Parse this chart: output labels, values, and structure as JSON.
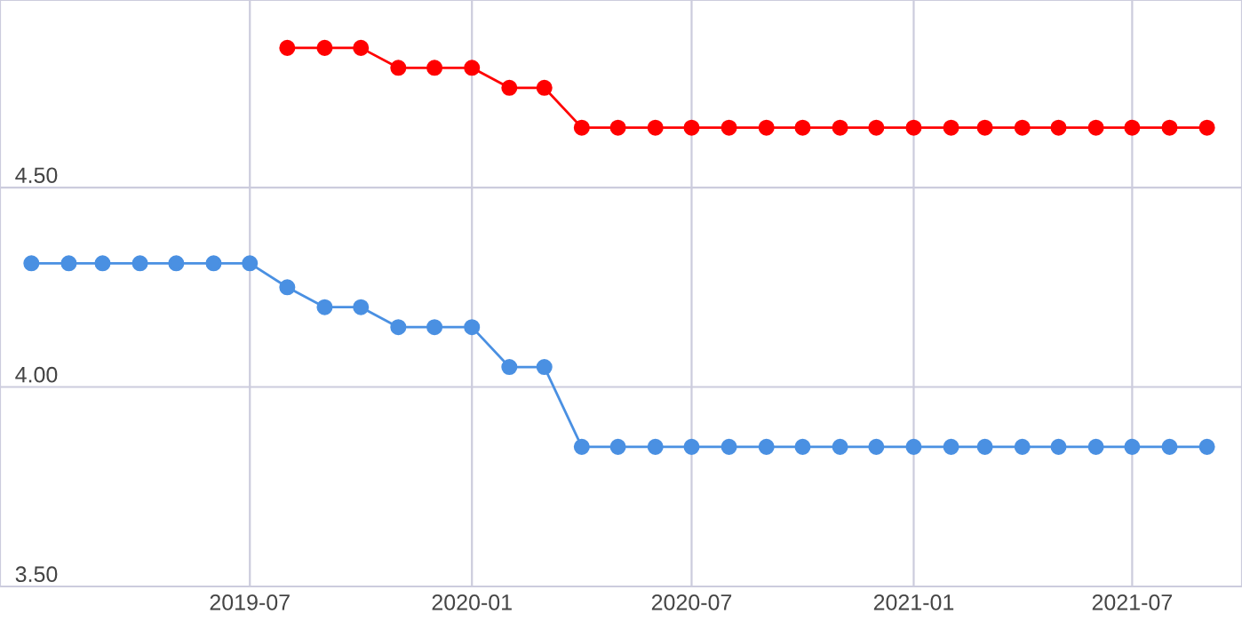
{
  "chart_data": {
    "type": "line",
    "x": [
      "2019-01",
      "2019-02",
      "2019-03",
      "2019-04",
      "2019-05",
      "2019-06",
      "2019-07",
      "2019-08",
      "2019-09",
      "2019-10",
      "2019-11",
      "2019-12",
      "2020-01",
      "2020-02",
      "2020-03",
      "2020-04",
      "2020-05",
      "2020-06",
      "2020-07",
      "2020-08",
      "2020-09",
      "2020-10",
      "2020-11",
      "2020-12",
      "2021-01",
      "2021-02",
      "2021-03",
      "2021-04",
      "2021-05",
      "2021-06",
      "2021-07",
      "2021-08",
      "2021-09"
    ],
    "series": [
      {
        "color": "#ff0000",
        "values": [
          null,
          null,
          null,
          null,
          null,
          null,
          null,
          4.85,
          4.85,
          4.85,
          4.8,
          4.8,
          4.8,
          4.75,
          4.75,
          4.65,
          4.65,
          4.65,
          4.65,
          4.65,
          4.65,
          4.65,
          4.65,
          4.65,
          4.65,
          4.65,
          4.65,
          4.65,
          4.65,
          4.65,
          4.65,
          4.65,
          4.65
        ]
      },
      {
        "color": "#4a90e2",
        "values": [
          4.31,
          4.31,
          4.31,
          4.31,
          4.31,
          4.31,
          4.31,
          4.25,
          4.2,
          4.2,
          4.15,
          4.15,
          4.15,
          4.05,
          4.05,
          3.85,
          3.85,
          3.85,
          3.85,
          3.85,
          3.85,
          3.85,
          3.85,
          3.85,
          3.85,
          3.85,
          3.85,
          3.85,
          3.85,
          3.85,
          3.85,
          3.85,
          3.85
        ]
      }
    ],
    "xlim": [
      "2018-12-06",
      "2021-09-30"
    ],
    "xticks": [
      {
        "value": "2019-07",
        "label": "2019-07"
      },
      {
        "value": "2020-01",
        "label": "2020-01"
      },
      {
        "value": "2020-07",
        "label": "2020-07"
      },
      {
        "value": "2021-01",
        "label": "2021-01"
      },
      {
        "value": "2021-07",
        "label": "2021-07"
      }
    ],
    "ylim": [
      3.5,
      4.97
    ],
    "yticks": [
      {
        "value": 3.5,
        "label": "3.50"
      },
      {
        "value": 4.0,
        "label": "4.00"
      },
      {
        "value": 4.5,
        "label": "4.50"
      }
    ],
    "grid": true,
    "marker": "circle",
    "line_style": "solid"
  }
}
